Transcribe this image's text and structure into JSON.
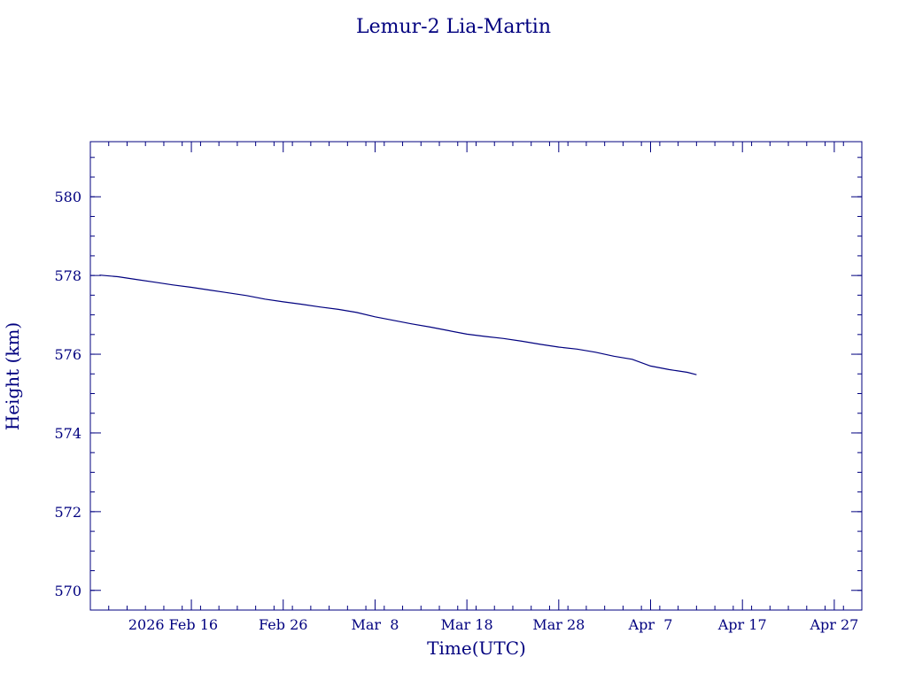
{
  "chart_data": {
    "type": "line",
    "title": "Lemur-2 Lia-Martin",
    "xlabel": "Time(UTC)",
    "ylabel": "Height (km)",
    "xlim": [
      "2026-02-05",
      "2026-04-30"
    ],
    "ylim": [
      569.5,
      581.4
    ],
    "x_ticks": [
      {
        "date": "2026-02-16",
        "label": "2026 Feb 16"
      },
      {
        "date": "2026-02-26",
        "label": "Feb 26"
      },
      {
        "date": "2026-03-08",
        "label": "Mar  8"
      },
      {
        "date": "2026-03-18",
        "label": "Mar 18"
      },
      {
        "date": "2026-03-28",
        "label": "Mar 28"
      },
      {
        "date": "2026-04-07",
        "label": "Apr  7"
      },
      {
        "date": "2026-04-17",
        "label": "Apr 17"
      },
      {
        "date": "2026-04-27",
        "label": "Apr 27"
      }
    ],
    "y_ticks": [
      570,
      572,
      574,
      576,
      578,
      580
    ],
    "line_color": "#00007f",
    "series": [
      {
        "x": [
          "2026-02-06",
          "2026-02-08",
          "2026-02-10",
          "2026-02-12",
          "2026-02-14",
          "2026-02-16",
          "2026-02-18",
          "2026-02-20",
          "2026-02-22",
          "2026-02-24",
          "2026-02-26",
          "2026-02-28",
          "2026-03-02",
          "2026-03-04",
          "2026-03-06",
          "2026-03-08",
          "2026-03-10",
          "2026-03-12",
          "2026-03-14",
          "2026-03-16",
          "2026-03-18",
          "2026-03-20",
          "2026-03-22",
          "2026-03-24",
          "2026-03-26",
          "2026-03-28",
          "2026-03-30",
          "2026-04-01",
          "2026-04-03",
          "2026-04-05",
          "2026-04-07",
          "2026-04-09",
          "2026-04-11",
          "2026-04-12"
        ],
        "y": [
          578.01,
          577.97,
          577.9,
          577.83,
          577.76,
          577.7,
          577.63,
          577.56,
          577.49,
          577.4,
          577.33,
          577.27,
          577.2,
          577.14,
          577.06,
          576.95,
          576.86,
          576.77,
          576.69,
          576.6,
          576.51,
          576.45,
          576.4,
          576.33,
          576.25,
          576.18,
          576.13,
          576.05,
          575.95,
          575.87,
          575.7,
          575.61,
          575.54,
          575.48
        ]
      }
    ]
  }
}
